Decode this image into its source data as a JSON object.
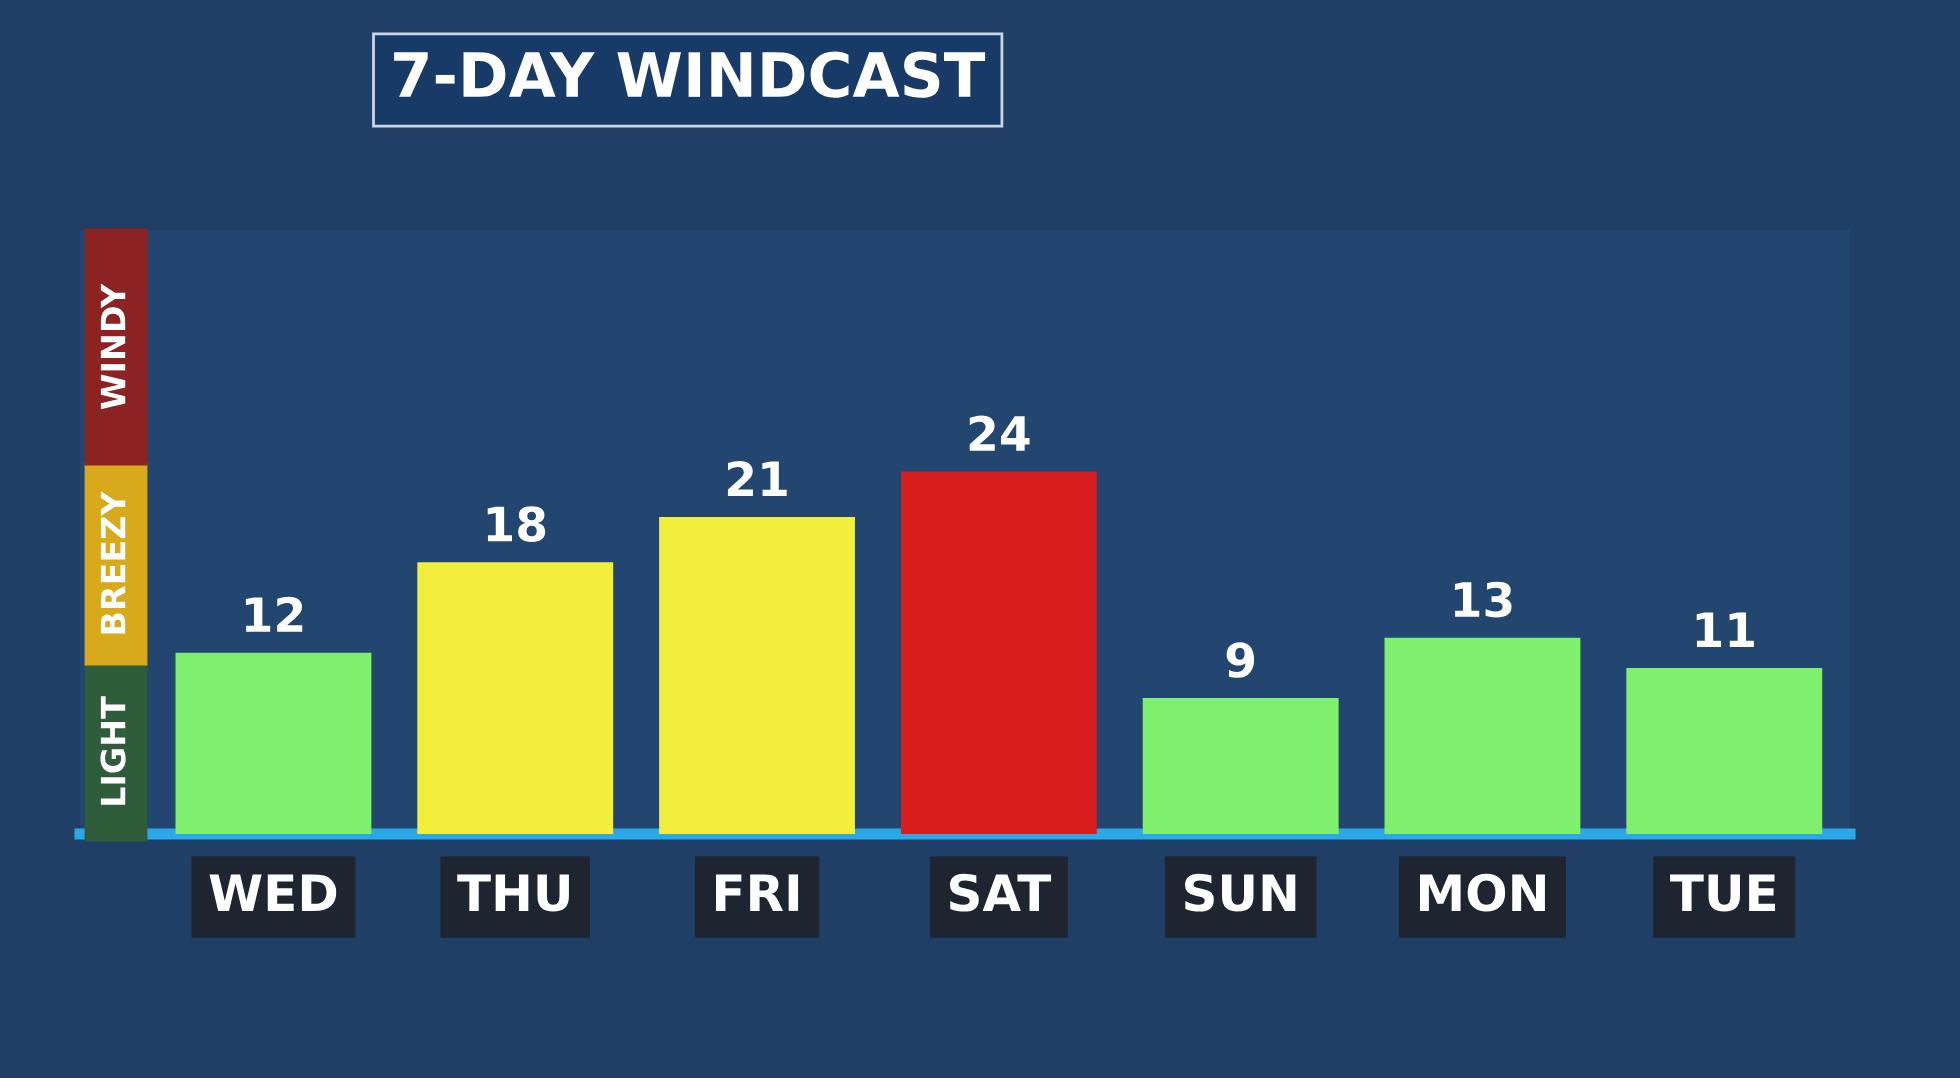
{
  "chart_data": {
    "type": "bar",
    "title": "7-DAY WINDCAST",
    "categories": [
      "WED",
      "THU",
      "FRI",
      "SAT",
      "SUN",
      "MON",
      "TUE"
    ],
    "values": [
      12,
      18,
      21,
      24,
      9,
      13,
      11
    ],
    "colors": [
      "#7ef06e",
      "#f2ee3c",
      "#f2ee3c",
      "#d81e1e",
      "#7ef06e",
      "#7ef06e",
      "#7ef06e"
    ],
    "data_labels": true,
    "grid": false,
    "legend": false,
    "tick_labels": "x",
    "annotations": [
      "LIGHT",
      "BREEZY",
      "WINDY"
    ]
  }
}
